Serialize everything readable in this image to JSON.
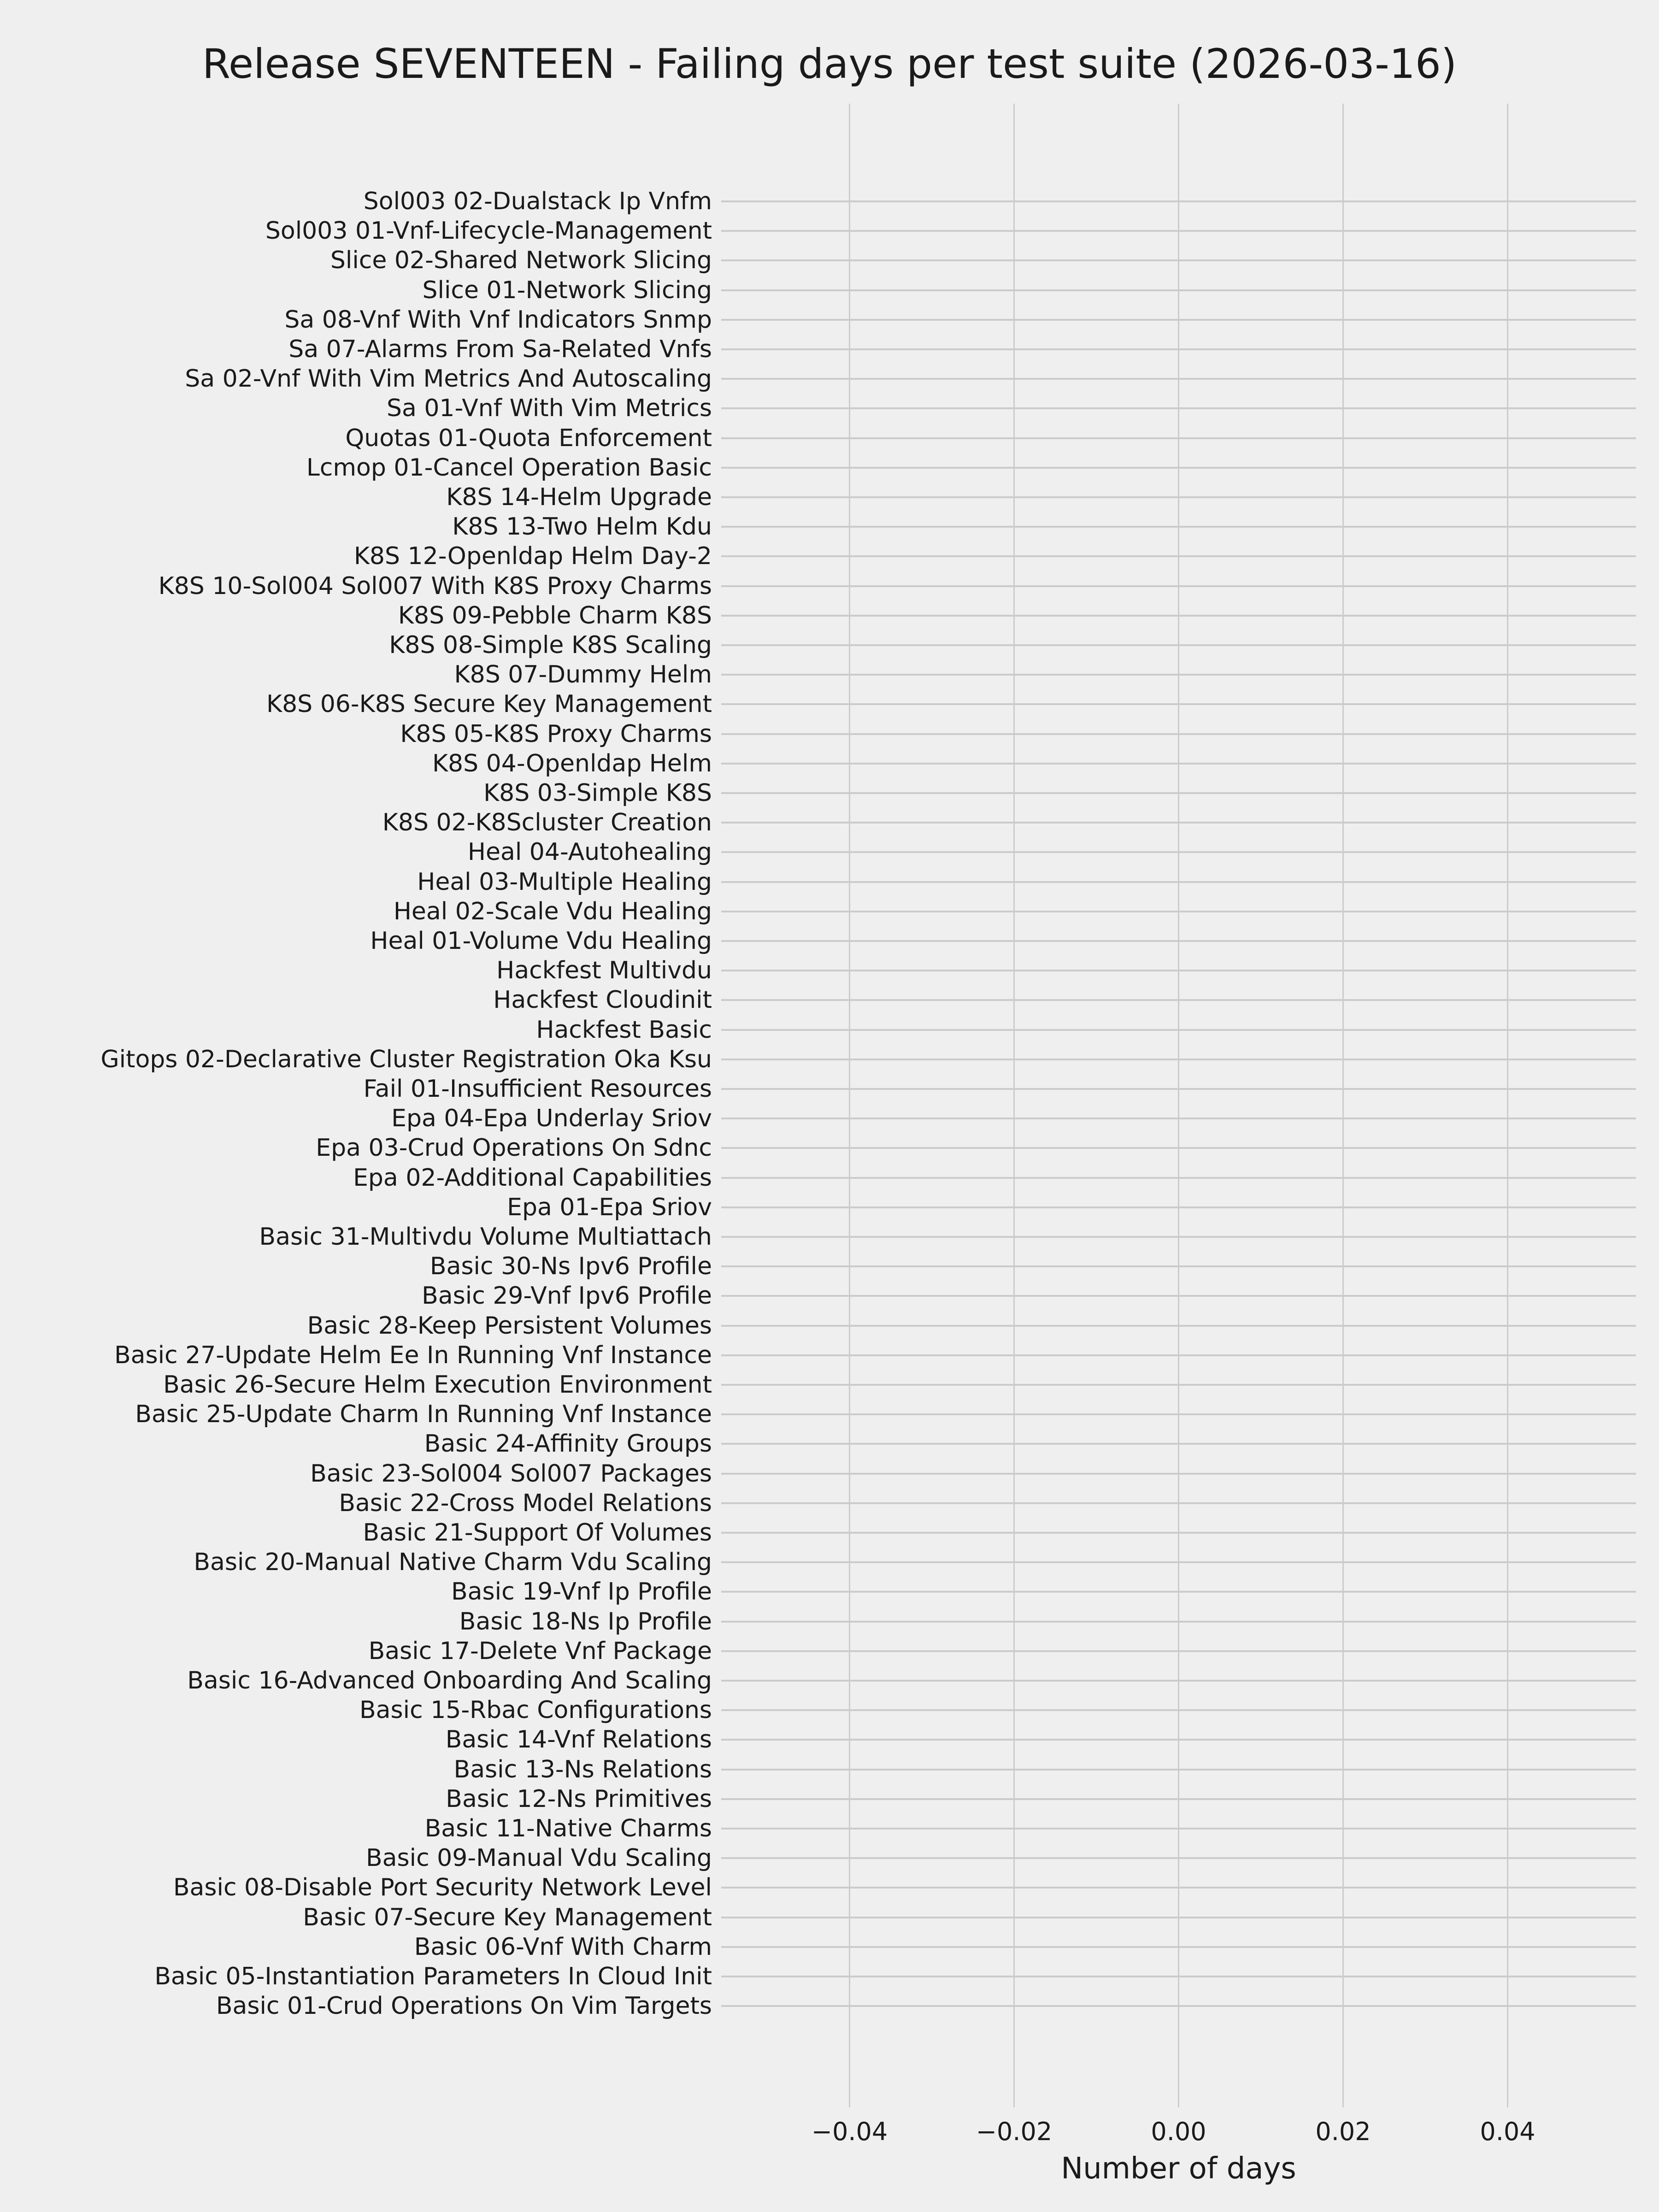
{
  "title": "Release SEVENTEEN - Failing days per test suite (2026-03-16)",
  "chart_data": {
    "type": "bar",
    "orientation": "horizontal",
    "title": "Release SEVENTEEN - Failing days per test suite (2026-03-16)",
    "xlabel": "Number of days",
    "ylabel": "",
    "grid": true,
    "legend": false,
    "xlim": [
      -0.0556,
      0.0556
    ],
    "x_ticks": [
      -0.04,
      -0.02,
      0.0,
      0.02,
      0.04
    ],
    "x_tick_labels": [
      "−0.04",
      "−0.02",
      "0.00",
      "0.02",
      "0.04"
    ],
    "colors": {
      "background": "#efefef",
      "grid": "#cccccc",
      "text": "#1a1a1a"
    },
    "categories": [
      "Sol003 02-Dualstack Ip Vnfm",
      "Sol003 01-Vnf-Lifecycle-Management",
      "Slice 02-Shared Network Slicing",
      "Slice 01-Network Slicing",
      "Sa 08-Vnf With Vnf Indicators Snmp",
      "Sa 07-Alarms From Sa-Related Vnfs",
      "Sa 02-Vnf With Vim Metrics And Autoscaling",
      "Sa 01-Vnf With Vim Metrics",
      "Quotas 01-Quota Enforcement",
      "Lcmop 01-Cancel Operation Basic",
      "K8S 14-Helm Upgrade",
      "K8S 13-Two Helm Kdu",
      "K8S 12-Openldap Helm Day-2",
      "K8S 10-Sol004 Sol007 With K8S Proxy Charms",
      "K8S 09-Pebble Charm K8S",
      "K8S 08-Simple K8S Scaling",
      "K8S 07-Dummy Helm",
      "K8S 06-K8S Secure Key Management",
      "K8S 05-K8S Proxy Charms",
      "K8S 04-Openldap Helm",
      "K8S 03-Simple K8S",
      "K8S 02-K8Scluster Creation",
      "Heal 04-Autohealing",
      "Heal 03-Multiple Healing",
      "Heal 02-Scale Vdu Healing",
      "Heal 01-Volume Vdu Healing",
      "Hackfest Multivdu",
      "Hackfest Cloudinit",
      "Hackfest Basic",
      "Gitops 02-Declarative Cluster Registration Oka Ksu",
      "Fail 01-Insufficient Resources",
      "Epa 04-Epa Underlay Sriov",
      "Epa 03-Crud Operations On Sdnc",
      "Epa 02-Additional Capabilities",
      "Epa 01-Epa Sriov",
      "Basic 31-Multivdu Volume Multiattach",
      "Basic 30-Ns Ipv6 Profile",
      "Basic 29-Vnf Ipv6 Profile",
      "Basic 28-Keep Persistent Volumes",
      "Basic 27-Update Helm Ee In Running Vnf Instance",
      "Basic 26-Secure Helm Execution Environment",
      "Basic 25-Update Charm In Running Vnf Instance",
      "Basic 24-Affinity Groups",
      "Basic 23-Sol004 Sol007 Packages",
      "Basic 22-Cross Model Relations",
      "Basic 21-Support Of Volumes",
      "Basic 20-Manual Native Charm Vdu Scaling",
      "Basic 19-Vnf Ip Profile",
      "Basic 18-Ns Ip Profile",
      "Basic 17-Delete Vnf Package",
      "Basic 16-Advanced Onboarding And Scaling",
      "Basic 15-Rbac Configurations",
      "Basic 14-Vnf Relations",
      "Basic 13-Ns Relations",
      "Basic 12-Ns Primitives",
      "Basic 11-Native Charms",
      "Basic 09-Manual Vdu Scaling",
      "Basic 08-Disable Port Security Network Level",
      "Basic 07-Secure Key Management",
      "Basic 06-Vnf With Charm",
      "Basic 05-Instantiation Parameters In Cloud Init",
      "Basic 01-Crud Operations On Vim Targets"
    ],
    "values": [
      0,
      0,
      0,
      0,
      0,
      0,
      0,
      0,
      0,
      0,
      0,
      0,
      0,
      0,
      0,
      0,
      0,
      0,
      0,
      0,
      0,
      0,
      0,
      0,
      0,
      0,
      0,
      0,
      0,
      0,
      0,
      0,
      0,
      0,
      0,
      0,
      0,
      0,
      0,
      0,
      0,
      0,
      0,
      0,
      0,
      0,
      0,
      0,
      0,
      0,
      0,
      0,
      0,
      0,
      0,
      0,
      0,
      0,
      0,
      0,
      0,
      0
    ]
  }
}
